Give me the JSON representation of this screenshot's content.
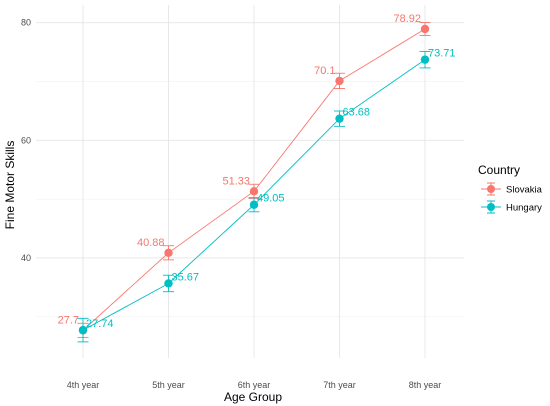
{
  "chart_data": {
    "type": "line",
    "title": "",
    "xlabel": "Age Group",
    "ylabel": "Fine Motor Skills",
    "categories": [
      "4th year",
      "5th year",
      "6th year",
      "7th year",
      "8th year"
    ],
    "ylim": [
      23,
      83
    ],
    "yticks": [
      40,
      60,
      80
    ],
    "grid": true,
    "error_bars": true,
    "legend": {
      "title": "Country",
      "position": "right"
    },
    "series": [
      {
        "name": "Slovakia",
        "color": "#F8766D",
        "values": [
          27.7,
          40.88,
          51.33,
          70.1,
          78.92
        ],
        "labels": [
          "27.7",
          "40.88",
          "51.33",
          "70.1",
          "78.92"
        ],
        "error": [
          1.2,
          1.2,
          1.2,
          1.3,
          1.1
        ]
      },
      {
        "name": "Hungary",
        "color": "#00BFC4",
        "values": [
          27.74,
          35.67,
          49.05,
          63.68,
          73.71
        ],
        "labels": [
          "27.74",
          "35.67",
          "49.05",
          "63.68",
          "73.71"
        ],
        "error": [
          2.0,
          1.4,
          1.2,
          1.3,
          1.4
        ]
      }
    ]
  }
}
